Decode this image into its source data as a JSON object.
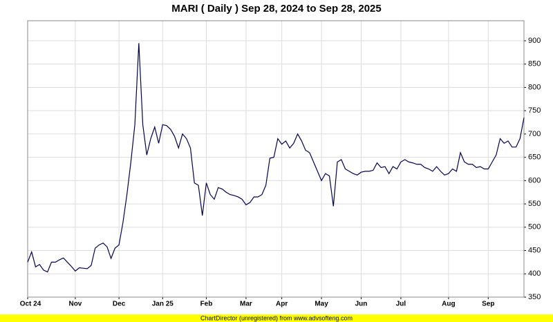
{
  "chart_data": {
    "type": "line",
    "title": "MARI ( Daily ) Sep 28, 2024 to Sep 28, 2025",
    "categories": [
      "Oct 24",
      null,
      null,
      null,
      null,
      null,
      null,
      null,
      null,
      null,
      null,
      null,
      "Nov",
      null,
      null,
      null,
      null,
      null,
      null,
      null,
      null,
      null,
      null,
      "Dec",
      null,
      null,
      null,
      null,
      null,
      null,
      null,
      null,
      null,
      null,
      "Jan 25",
      null,
      null,
      null,
      null,
      null,
      null,
      null,
      null,
      null,
      null,
      "Feb",
      null,
      null,
      null,
      null,
      null,
      null,
      null,
      null,
      null,
      "Mar",
      null,
      null,
      null,
      null,
      null,
      null,
      null,
      null,
      "Apr",
      null,
      null,
      null,
      null,
      null,
      null,
      null,
      null,
      null,
      "May",
      null,
      null,
      null,
      null,
      null,
      null,
      null,
      null,
      null,
      "Jun",
      null,
      null,
      null,
      null,
      null,
      null,
      null,
      null,
      null,
      "Jul",
      null,
      null,
      null,
      null,
      null,
      null,
      null,
      null,
      null,
      null,
      null,
      "Aug",
      null,
      null,
      null,
      null,
      null,
      null,
      null,
      null,
      null,
      "Sep",
      null,
      null,
      null,
      null,
      null,
      null,
      null,
      null,
      null
    ],
    "values": [
      425,
      447,
      415,
      420,
      408,
      404,
      425,
      425,
      430,
      434,
      425,
      416,
      406,
      413,
      412,
      411,
      418,
      455,
      462,
      466,
      458,
      433,
      455,
      462,
      510,
      570,
      640,
      720,
      895,
      720,
      655,
      690,
      715,
      680,
      720,
      718,
      710,
      695,
      670,
      700,
      690,
      670,
      595,
      590,
      525,
      595,
      570,
      560,
      585,
      582,
      575,
      570,
      568,
      565,
      560,
      548,
      553,
      565,
      565,
      570,
      590,
      648,
      650,
      690,
      678,
      685,
      670,
      680,
      700,
      685,
      665,
      660,
      640,
      620,
      600,
      615,
      610,
      545,
      640,
      645,
      625,
      620,
      615,
      612,
      618,
      620,
      620,
      622,
      638,
      628,
      630,
      615,
      630,
      625,
      640,
      645,
      640,
      638,
      635,
      635,
      628,
      625,
      620,
      630,
      620,
      612,
      615,
      625,
      620,
      660,
      640,
      635,
      635,
      628,
      630,
      625,
      625,
      640,
      655,
      690,
      680,
      685,
      672,
      672,
      690,
      735
    ],
    "color": "#000050",
    "ylim": [
      350,
      943
    ],
    "yticks": [
      350,
      400,
      450,
      500,
      550,
      600,
      650,
      700,
      750,
      800,
      850,
      900
    ],
    "grid": true,
    "footer": "ChartDirector (unregistered) from www.advsofteng.com"
  }
}
